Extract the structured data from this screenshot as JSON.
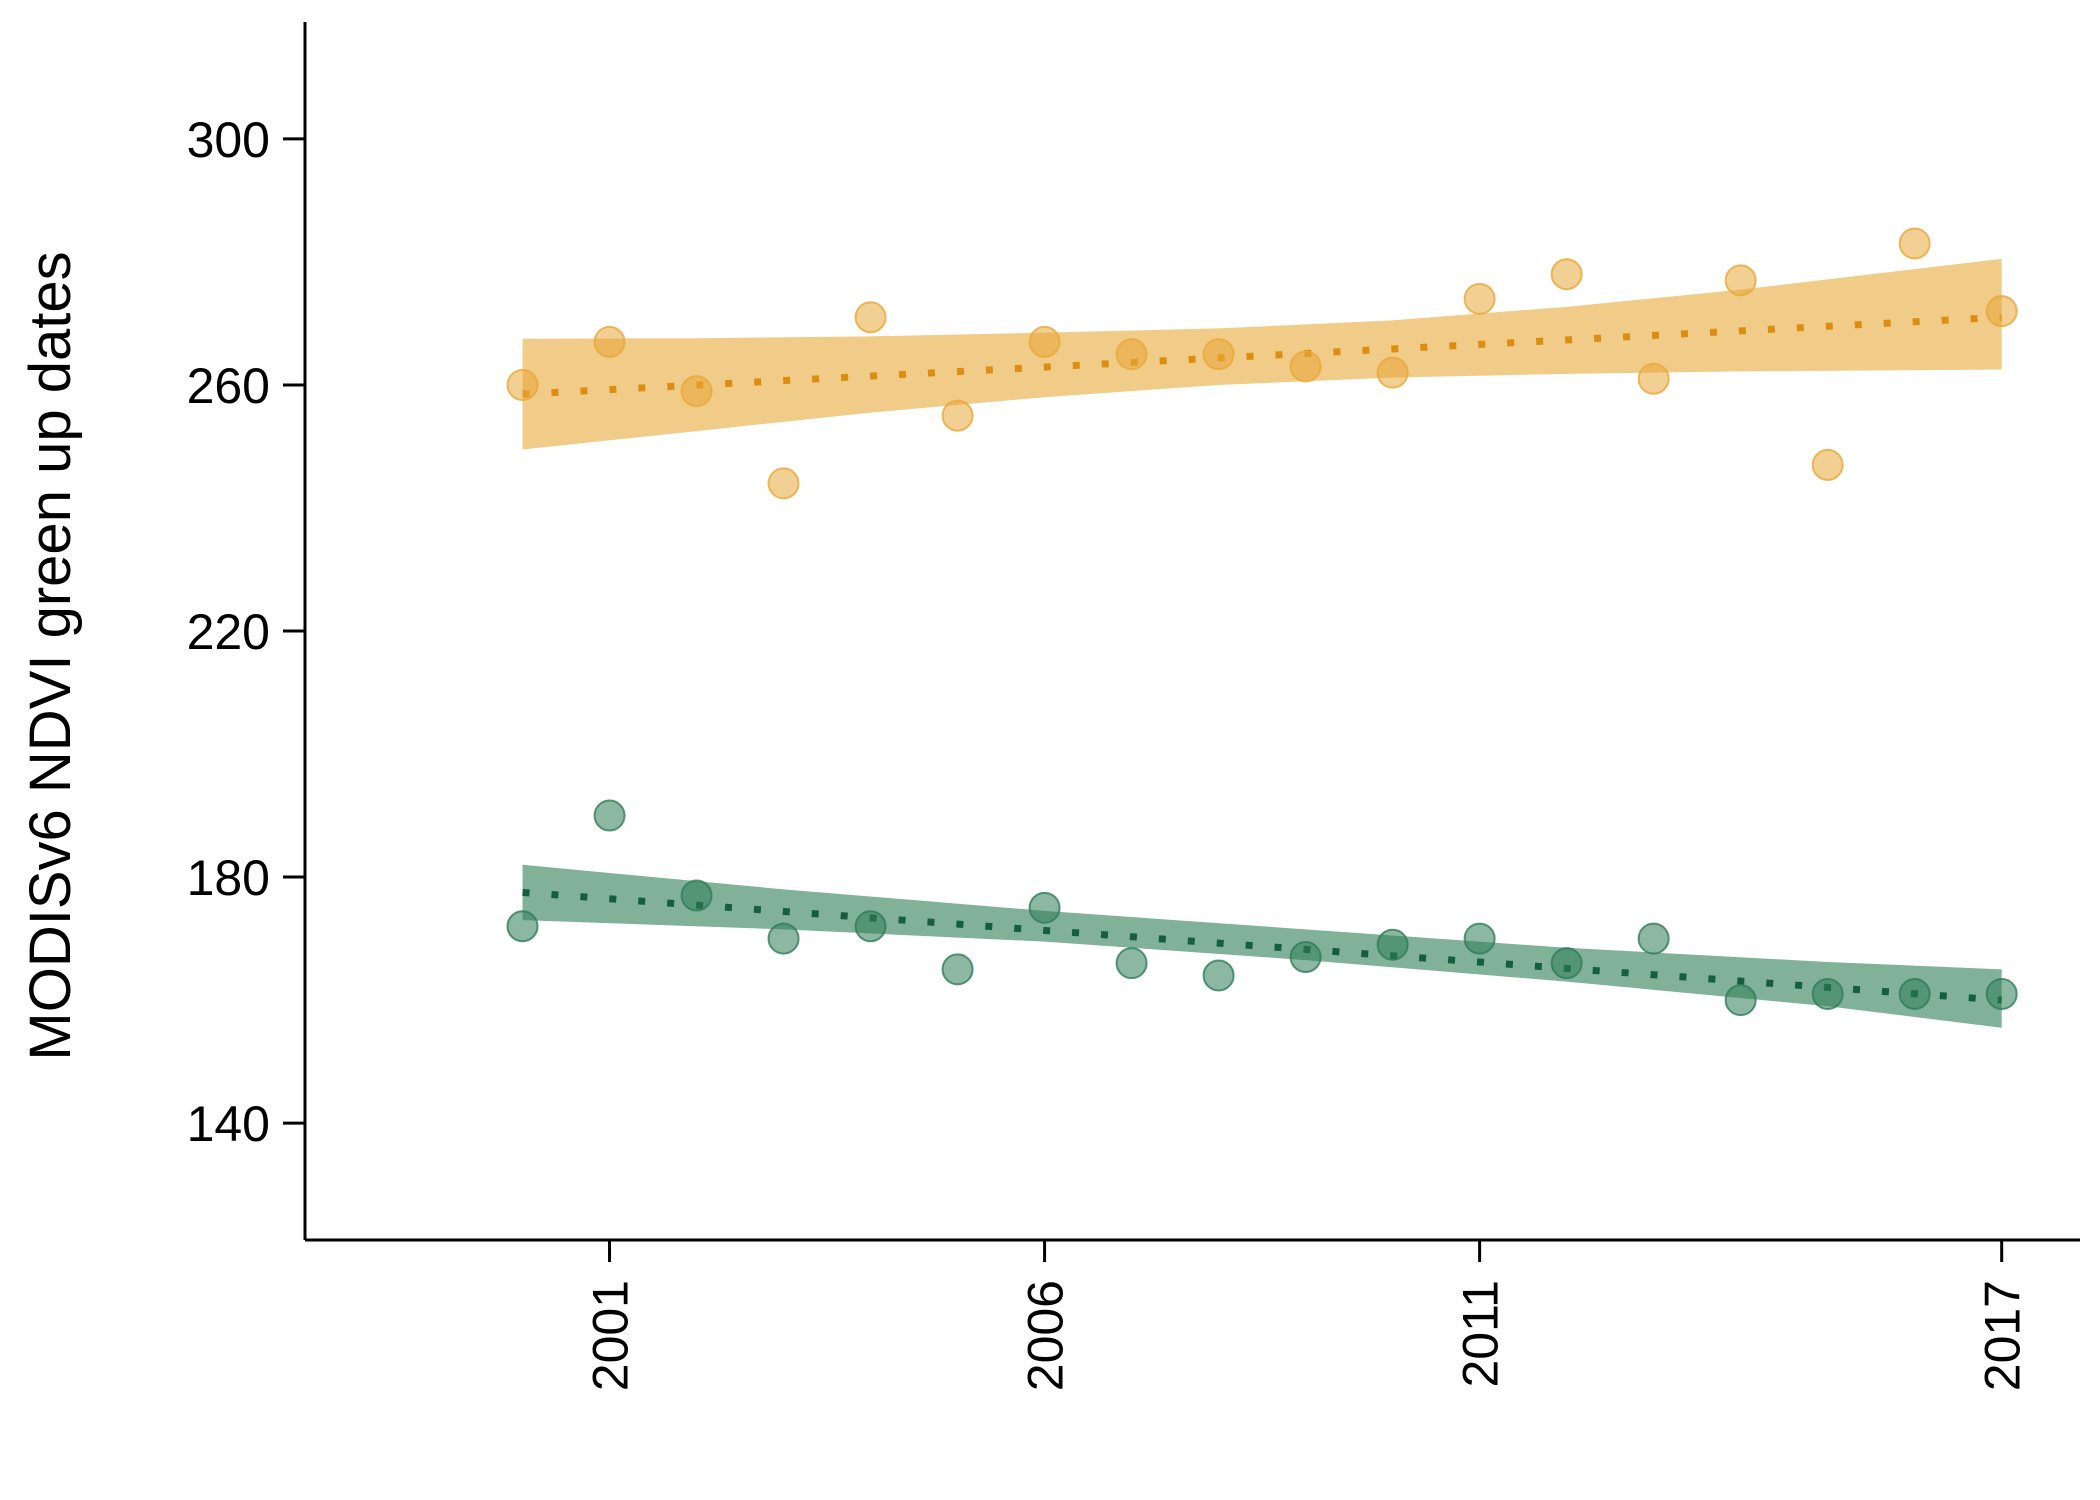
{
  "chart_data": {
    "type": "scatter",
    "title": "",
    "xlabel": "",
    "ylabel": "MODISv6 NDVI green up dates",
    "xlim": [
      1997.5,
      2017.9
    ],
    "ylim": [
      121,
      319
    ],
    "x_ticks": [
      2001,
      2006,
      2011,
      2017
    ],
    "y_ticks": [
      140,
      180,
      220,
      260,
      300
    ],
    "grid": false,
    "legend": "none",
    "series": [
      {
        "color": "#e8a838",
        "points": [
          [
            2000,
            260
          ],
          [
            2001,
            267
          ],
          [
            2002,
            259
          ],
          [
            2003,
            244
          ],
          [
            2004,
            271
          ],
          [
            2005,
            255
          ],
          [
            2006,
            267
          ],
          [
            2007,
            265
          ],
          [
            2008,
            265
          ],
          [
            2009,
            263
          ],
          [
            2010,
            262
          ],
          [
            2011,
            274
          ],
          [
            2012,
            278
          ],
          [
            2013,
            261
          ],
          [
            2014,
            277
          ],
          [
            2015,
            247
          ],
          [
            2016,
            283
          ],
          [
            2017,
            272
          ]
        ],
        "trend": {
          "x": [
            2000,
            2017
          ],
          "y": [
            258.5,
            271
          ]
        },
        "ci_band": [
          {
            "x": 2000,
            "lower": 249.5,
            "upper": 267.5
          },
          {
            "x": 2002,
            "lower": 252.5,
            "upper": 267.6
          },
          {
            "x": 2004,
            "lower": 255.5,
            "upper": 267.9
          },
          {
            "x": 2006,
            "lower": 258,
            "upper": 268.5
          },
          {
            "x": 2008,
            "lower": 260,
            "upper": 269.2
          },
          {
            "x": 2010,
            "lower": 261.2,
            "upper": 270.5
          },
          {
            "x": 2012,
            "lower": 261.8,
            "upper": 272.7
          },
          {
            "x": 2014,
            "lower": 262.2,
            "upper": 275.5
          },
          {
            "x": 2017,
            "lower": 262.5,
            "upper": 280.5
          }
        ]
      },
      {
        "color": "#2e7d57",
        "points": [
          [
            2000,
            172
          ],
          [
            2001,
            190
          ],
          [
            2002,
            177
          ],
          [
            2003,
            170
          ],
          [
            2004,
            172
          ],
          [
            2005,
            165
          ],
          [
            2006,
            175
          ],
          [
            2007,
            166
          ],
          [
            2008,
            164
          ],
          [
            2009,
            167
          ],
          [
            2010,
            169
          ],
          [
            2011,
            170
          ],
          [
            2012,
            166
          ],
          [
            2013,
            170
          ],
          [
            2014,
            160
          ],
          [
            2015,
            161
          ],
          [
            2016,
            161
          ],
          [
            2017,
            161
          ]
        ],
        "trend": {
          "x": [
            2000,
            2017
          ],
          "y": [
            177.5,
            160
          ]
        },
        "ci_band": [
          {
            "x": 2000,
            "lower": 173,
            "upper": 182
          },
          {
            "x": 2003,
            "lower": 171.5,
            "upper": 178
          },
          {
            "x": 2006,
            "lower": 169.5,
            "upper": 174.5
          },
          {
            "x": 2009,
            "lower": 166.5,
            "upper": 171.5
          },
          {
            "x": 2012,
            "lower": 163,
            "upper": 168.5
          },
          {
            "x": 2015,
            "lower": 159,
            "upper": 166.2
          },
          {
            "x": 2017,
            "lower": 155.5,
            "upper": 165
          }
        ]
      }
    ]
  }
}
